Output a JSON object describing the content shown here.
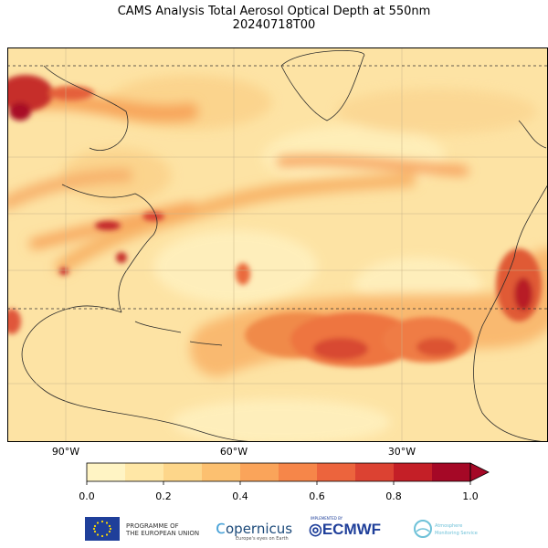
{
  "title": "CAMS Analysis Total Aerosol Optical Depth at 550nm",
  "subtitle": "20240718T00",
  "map": {
    "longitude_labels": [
      "90°W",
      "60°W",
      "30°W"
    ],
    "latitude_ticks": 6,
    "graticule": "dashed at 60°N and 15°N, light grid elsewhere",
    "high_aod_regions": [
      "Saharan dust plume (Cape Verde to Caribbean)",
      "Hudson Bay smoke",
      "US East Coast",
      "NW Africa"
    ]
  },
  "colorbar": {
    "min": 0.0,
    "max": 1.0,
    "extend": "max",
    "tick_labels": [
      "0.0",
      "0.2",
      "0.4",
      "0.6",
      "0.8",
      "1.0"
    ],
    "colors": [
      "#fff4c4",
      "#ffe7a6",
      "#fdd68a",
      "#fcc070",
      "#faa45a",
      "#f68649",
      "#ec643d",
      "#dc4232",
      "#c41f27",
      "#a50826"
    ]
  },
  "logos": {
    "eu_line1": "PROGRAMME OF",
    "eu_line2": "THE EUROPEAN UNION",
    "copernicus": "opernicus",
    "copernicus_sub": "Europe's eyes on Earth",
    "ecmwf_pre": "IMPLEMENTED BY",
    "ecmwf": "ECMWF",
    "atm_line1": "Atmosphere",
    "atm_line2": "Monitoring Service"
  }
}
